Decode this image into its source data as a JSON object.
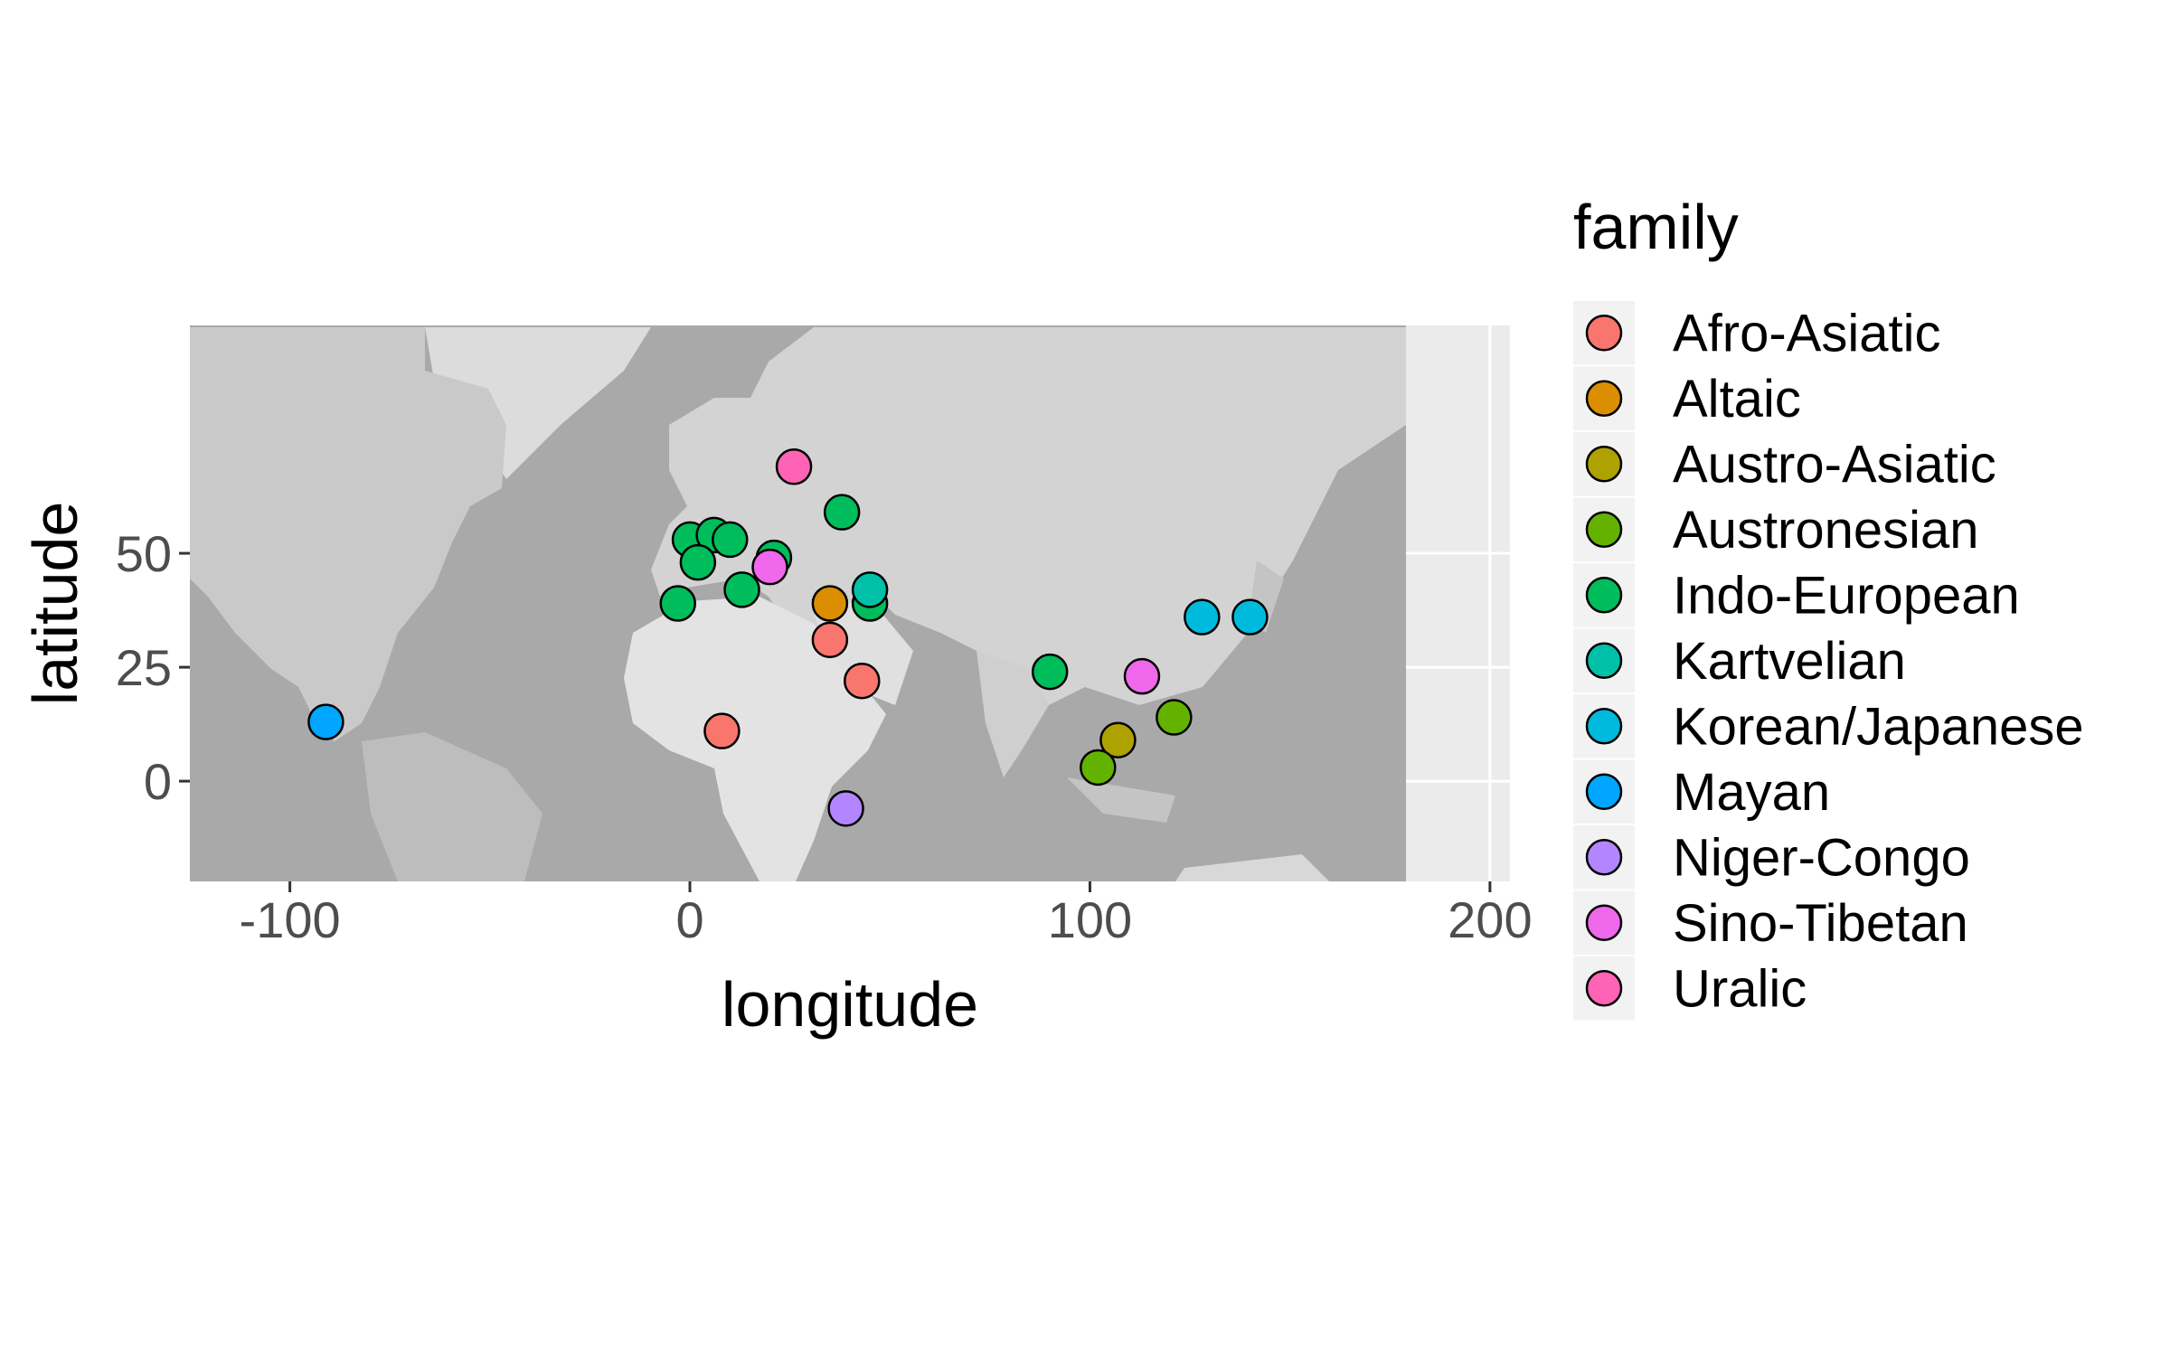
{
  "chart_data": {
    "type": "scatter",
    "title": "",
    "xlabel": "longitude",
    "ylabel": "latitude",
    "xlim": [
      -125,
      205
    ],
    "ylim": [
      -22,
      100
    ],
    "x_ticks": [
      -100,
      0,
      100,
      200
    ],
    "x_tick_labels": [
      "-100",
      "0",
      "100",
      "200"
    ],
    "y_ticks": [
      0,
      25,
      50
    ],
    "y_tick_labels": [
      "0",
      "25",
      "50"
    ],
    "grid": true,
    "background": "grayscale world relief map covering longitude -125 to 180",
    "legend": {
      "title": "family",
      "position": "right",
      "entries": [
        {
          "name": "Afro-Asiatic",
          "color": "#F8766D"
        },
        {
          "name": "Altaic",
          "color": "#DB8E00"
        },
        {
          "name": "Austro-Asiatic",
          "color": "#AEA200"
        },
        {
          "name": "Austronesian",
          "color": "#64B200"
        },
        {
          "name": "Indo-European",
          "color": "#00BD5C"
        },
        {
          "name": "Kartvelian",
          "color": "#00C1A7"
        },
        {
          "name": "Korean/Japanese",
          "color": "#00BADE"
        },
        {
          "name": "Mayan",
          "color": "#00A6FF"
        },
        {
          "name": "Niger-Congo",
          "color": "#B385FF"
        },
        {
          "name": "Sino-Tibetan",
          "color": "#EF67EB"
        },
        {
          "name": "Uralic",
          "color": "#FF63B6"
        }
      ]
    },
    "series": [
      {
        "name": "Afro-Asiatic",
        "points": [
          {
            "x": 35,
            "y": 31
          },
          {
            "x": 43,
            "y": 22
          },
          {
            "x": 8,
            "y": 11
          }
        ]
      },
      {
        "name": "Altaic",
        "points": [
          {
            "x": 35,
            "y": 39
          }
        ]
      },
      {
        "name": "Austro-Asiatic",
        "points": [
          {
            "x": 107,
            "y": 9
          }
        ]
      },
      {
        "name": "Austronesian",
        "points": [
          {
            "x": 102,
            "y": 3
          },
          {
            "x": 121,
            "y": 14
          }
        ]
      },
      {
        "name": "Indo-European",
        "points": [
          {
            "x": 0,
            "y": 53
          },
          {
            "x": 6,
            "y": 54
          },
          {
            "x": 10,
            "y": 53
          },
          {
            "x": 2,
            "y": 48
          },
          {
            "x": 13,
            "y": 42
          },
          {
            "x": 21,
            "y": 49
          },
          {
            "x": 38,
            "y": 59
          },
          {
            "x": -3,
            "y": 39
          },
          {
            "x": 45,
            "y": 39
          },
          {
            "x": 90,
            "y": 24
          }
        ]
      },
      {
        "name": "Kartvelian",
        "points": [
          {
            "x": 45,
            "y": 42
          }
        ]
      },
      {
        "name": "Korean/Japanese",
        "points": [
          {
            "x": 128,
            "y": 36
          },
          {
            "x": 140,
            "y": 36
          }
        ]
      },
      {
        "name": "Mayan",
        "points": [
          {
            "x": -91,
            "y": 13
          }
        ]
      },
      {
        "name": "Niger-Congo",
        "points": [
          {
            "x": 39,
            "y": -6
          }
        ]
      },
      {
        "name": "Sino-Tibetan",
        "points": [
          {
            "x": 113,
            "y": 23
          },
          {
            "x": 20,
            "y": 47
          }
        ]
      },
      {
        "name": "Uralic",
        "points": [
          {
            "x": 26,
            "y": 69
          }
        ]
      }
    ]
  }
}
